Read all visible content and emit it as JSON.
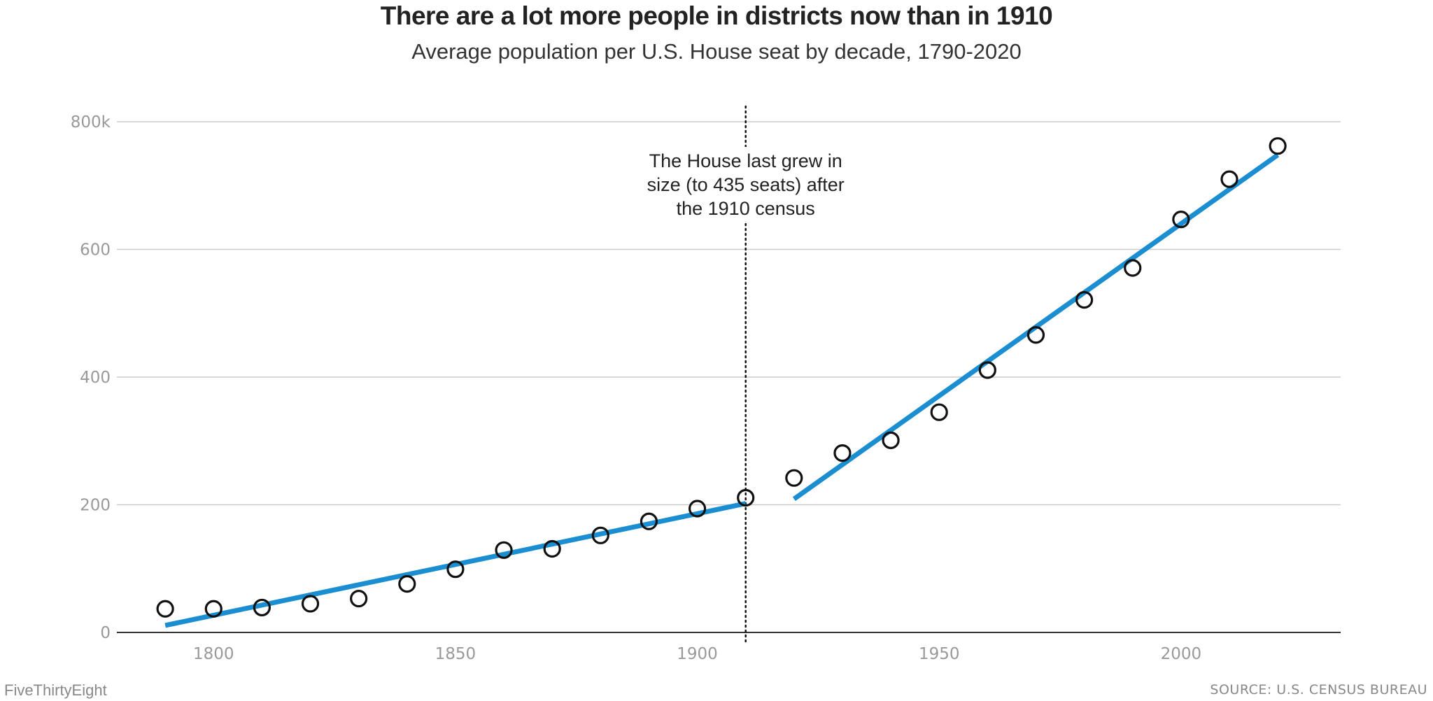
{
  "title": "There are a lot more people in districts now than in 1910",
  "subtitle": "Average population per U.S. House seat by decade, 1790-2020",
  "footer": {
    "brand": "FiveThirtyEight",
    "source": "SOURCE: U.S. CENSUS BUREAU"
  },
  "annotation": {
    "lines": [
      "The House last grew in",
      "size (to 435 seats) after",
      "the 1910 census"
    ],
    "x": 1910
  },
  "colors": {
    "trend": "#1a8ed1",
    "points": "#111111",
    "grid": "#cccccc",
    "axis": "#333333"
  },
  "chart_data": {
    "type": "scatter",
    "title": "There are a lot more people in districts now than in 1910",
    "subtitle": "Average population per U.S. House seat by decade, 1790-2020",
    "xlabel": "",
    "ylabel": "",
    "xlim": [
      1780,
      2033
    ],
    "ylim": [
      0,
      800
    ],
    "grid": true,
    "x_ticks": [
      {
        "value": 1800,
        "label": "1800"
      },
      {
        "value": 1850,
        "label": "1850"
      },
      {
        "value": 1900,
        "label": "1900"
      },
      {
        "value": 1950,
        "label": "1950"
      },
      {
        "value": 2000,
        "label": "2000"
      }
    ],
    "y_ticks": [
      {
        "value": 0,
        "label": "0"
      },
      {
        "value": 200,
        "label": "200"
      },
      {
        "value": 400,
        "label": "400"
      },
      {
        "value": 600,
        "label": "600"
      },
      {
        "value": 800,
        "label": "800k"
      }
    ],
    "points": [
      {
        "x": 1790,
        "y": 37
      },
      {
        "x": 1800,
        "y": 37
      },
      {
        "x": 1810,
        "y": 39
      },
      {
        "x": 1820,
        "y": 45
      },
      {
        "x": 1830,
        "y": 53
      },
      {
        "x": 1840,
        "y": 76
      },
      {
        "x": 1850,
        "y": 99
      },
      {
        "x": 1860,
        "y": 129
      },
      {
        "x": 1870,
        "y": 131
      },
      {
        "x": 1880,
        "y": 152
      },
      {
        "x": 1890,
        "y": 174
      },
      {
        "x": 1900,
        "y": 194
      },
      {
        "x": 1910,
        "y": 211
      },
      {
        "x": 1920,
        "y": 242
      },
      {
        "x": 1930,
        "y": 281
      },
      {
        "x": 1940,
        "y": 301
      },
      {
        "x": 1950,
        "y": 345
      },
      {
        "x": 1960,
        "y": 411
      },
      {
        "x": 1970,
        "y": 466
      },
      {
        "x": 1980,
        "y": 521
      },
      {
        "x": 1990,
        "y": 571
      },
      {
        "x": 2000,
        "y": 647
      },
      {
        "x": 2010,
        "y": 710
      },
      {
        "x": 2020,
        "y": 762
      }
    ],
    "trend_lines": [
      {
        "x": [
          1790,
          1910
        ],
        "y": [
          11,
          202
        ]
      },
      {
        "x": [
          1920,
          2020
        ],
        "y": [
          209,
          748
        ]
      }
    ]
  }
}
